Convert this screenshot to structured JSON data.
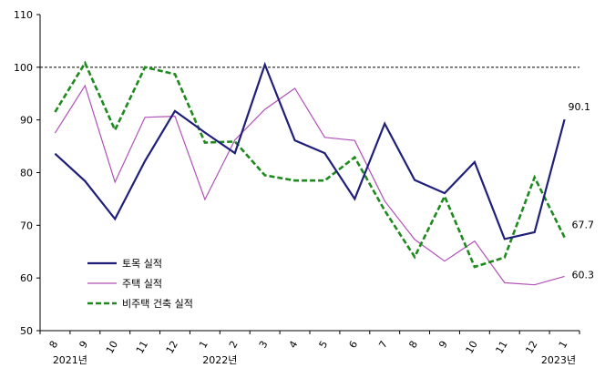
{
  "chart_data": {
    "type": "line",
    "ylim": [
      50,
      110
    ],
    "yticks": [
      50,
      60,
      70,
      80,
      90,
      100,
      110
    ],
    "x": [
      "8",
      "9",
      "10",
      "11",
      "12",
      "1",
      "2",
      "3",
      "4",
      "5",
      "6",
      "7",
      "8",
      "9",
      "10",
      "11",
      "12",
      "1"
    ],
    "year_labels": [
      {
        "text": "2021년",
        "index": 0.5
      },
      {
        "text": "2022년",
        "index": 5.5
      },
      {
        "text": "2023년",
        "index": 16.8
      }
    ],
    "reference_line": 100,
    "series": [
      {
        "name": "토목 실적",
        "color": "#1f1f7a",
        "style": "solid",
        "values": [
          83.6,
          78.4,
          71.2,
          82.2,
          91.7,
          87.6,
          83.7,
          100.5,
          86.1,
          83.7,
          75.0,
          89.3,
          78.6,
          76.1,
          82.0,
          67.4,
          68.7,
          90.1
        ],
        "end_label": "90.1"
      },
      {
        "name": "주택 실적",
        "color": "#b050b8",
        "style": "solid",
        "values": [
          87.5,
          96.5,
          78.2,
          90.5,
          90.7,
          74.9,
          86.2,
          92.0,
          96.0,
          86.7,
          86.1,
          74.6,
          67.3,
          63.2,
          67.0,
          59.1,
          58.7,
          60.3
        ],
        "end_label": "60.3"
      },
      {
        "name": "비주택 건축 실적",
        "color": "#1e8a1e",
        "style": "dashed",
        "values": [
          91.5,
          100.8,
          88.1,
          100.0,
          98.7,
          85.7,
          85.9,
          79.5,
          78.5,
          78.5,
          82.9,
          72.8,
          64.0,
          75.5,
          62.1,
          63.9,
          79.1,
          67.7
        ],
        "end_label": "67.7"
      }
    ]
  }
}
